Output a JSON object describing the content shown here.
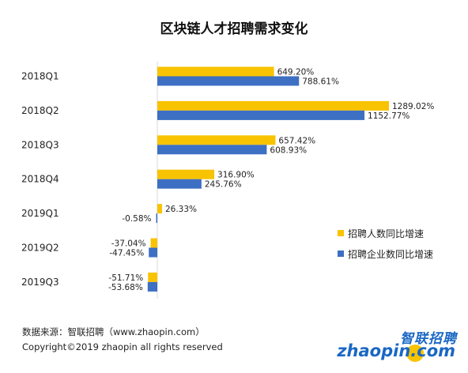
{
  "chart_data": {
    "type": "bar",
    "orientation": "horizontal",
    "title": "区块链人才招聘需求变化",
    "categories": [
      "2018Q1",
      "2018Q2",
      "2018Q3",
      "2018Q4",
      "2019Q1",
      "2019Q2",
      "2019Q3"
    ],
    "series": [
      {
        "name": "招聘人数同比增速",
        "color": "#f8c300",
        "values": [
          649.2,
          1289.02,
          657.42,
          316.9,
          26.33,
          -37.04,
          -51.71
        ],
        "labels": [
          "649.20%",
          "1289.02%",
          "657.42%",
          "316.90%",
          "26.33%",
          "-37.04%",
          "-51.71%"
        ]
      },
      {
        "name": "招聘企业数同比增速",
        "color": "#3d6fc3",
        "values": [
          788.61,
          1152.77,
          608.93,
          245.76,
          -0.58,
          -47.45,
          -53.68
        ],
        "labels": [
          "788.61%",
          "1152.77%",
          "608.93%",
          "245.76%",
          "-0.58%",
          "-47.45%",
          "-53.68%"
        ]
      }
    ],
    "legend_position": "right",
    "grid": false
  },
  "footer": {
    "source": "数据来源：智联招聘（www.zhaopin.com）",
    "copyright": "Copyright©2019 zhaopin all rights reserved"
  },
  "logo": {
    "cn": "智联招聘",
    "en": "zhaopin.com"
  }
}
